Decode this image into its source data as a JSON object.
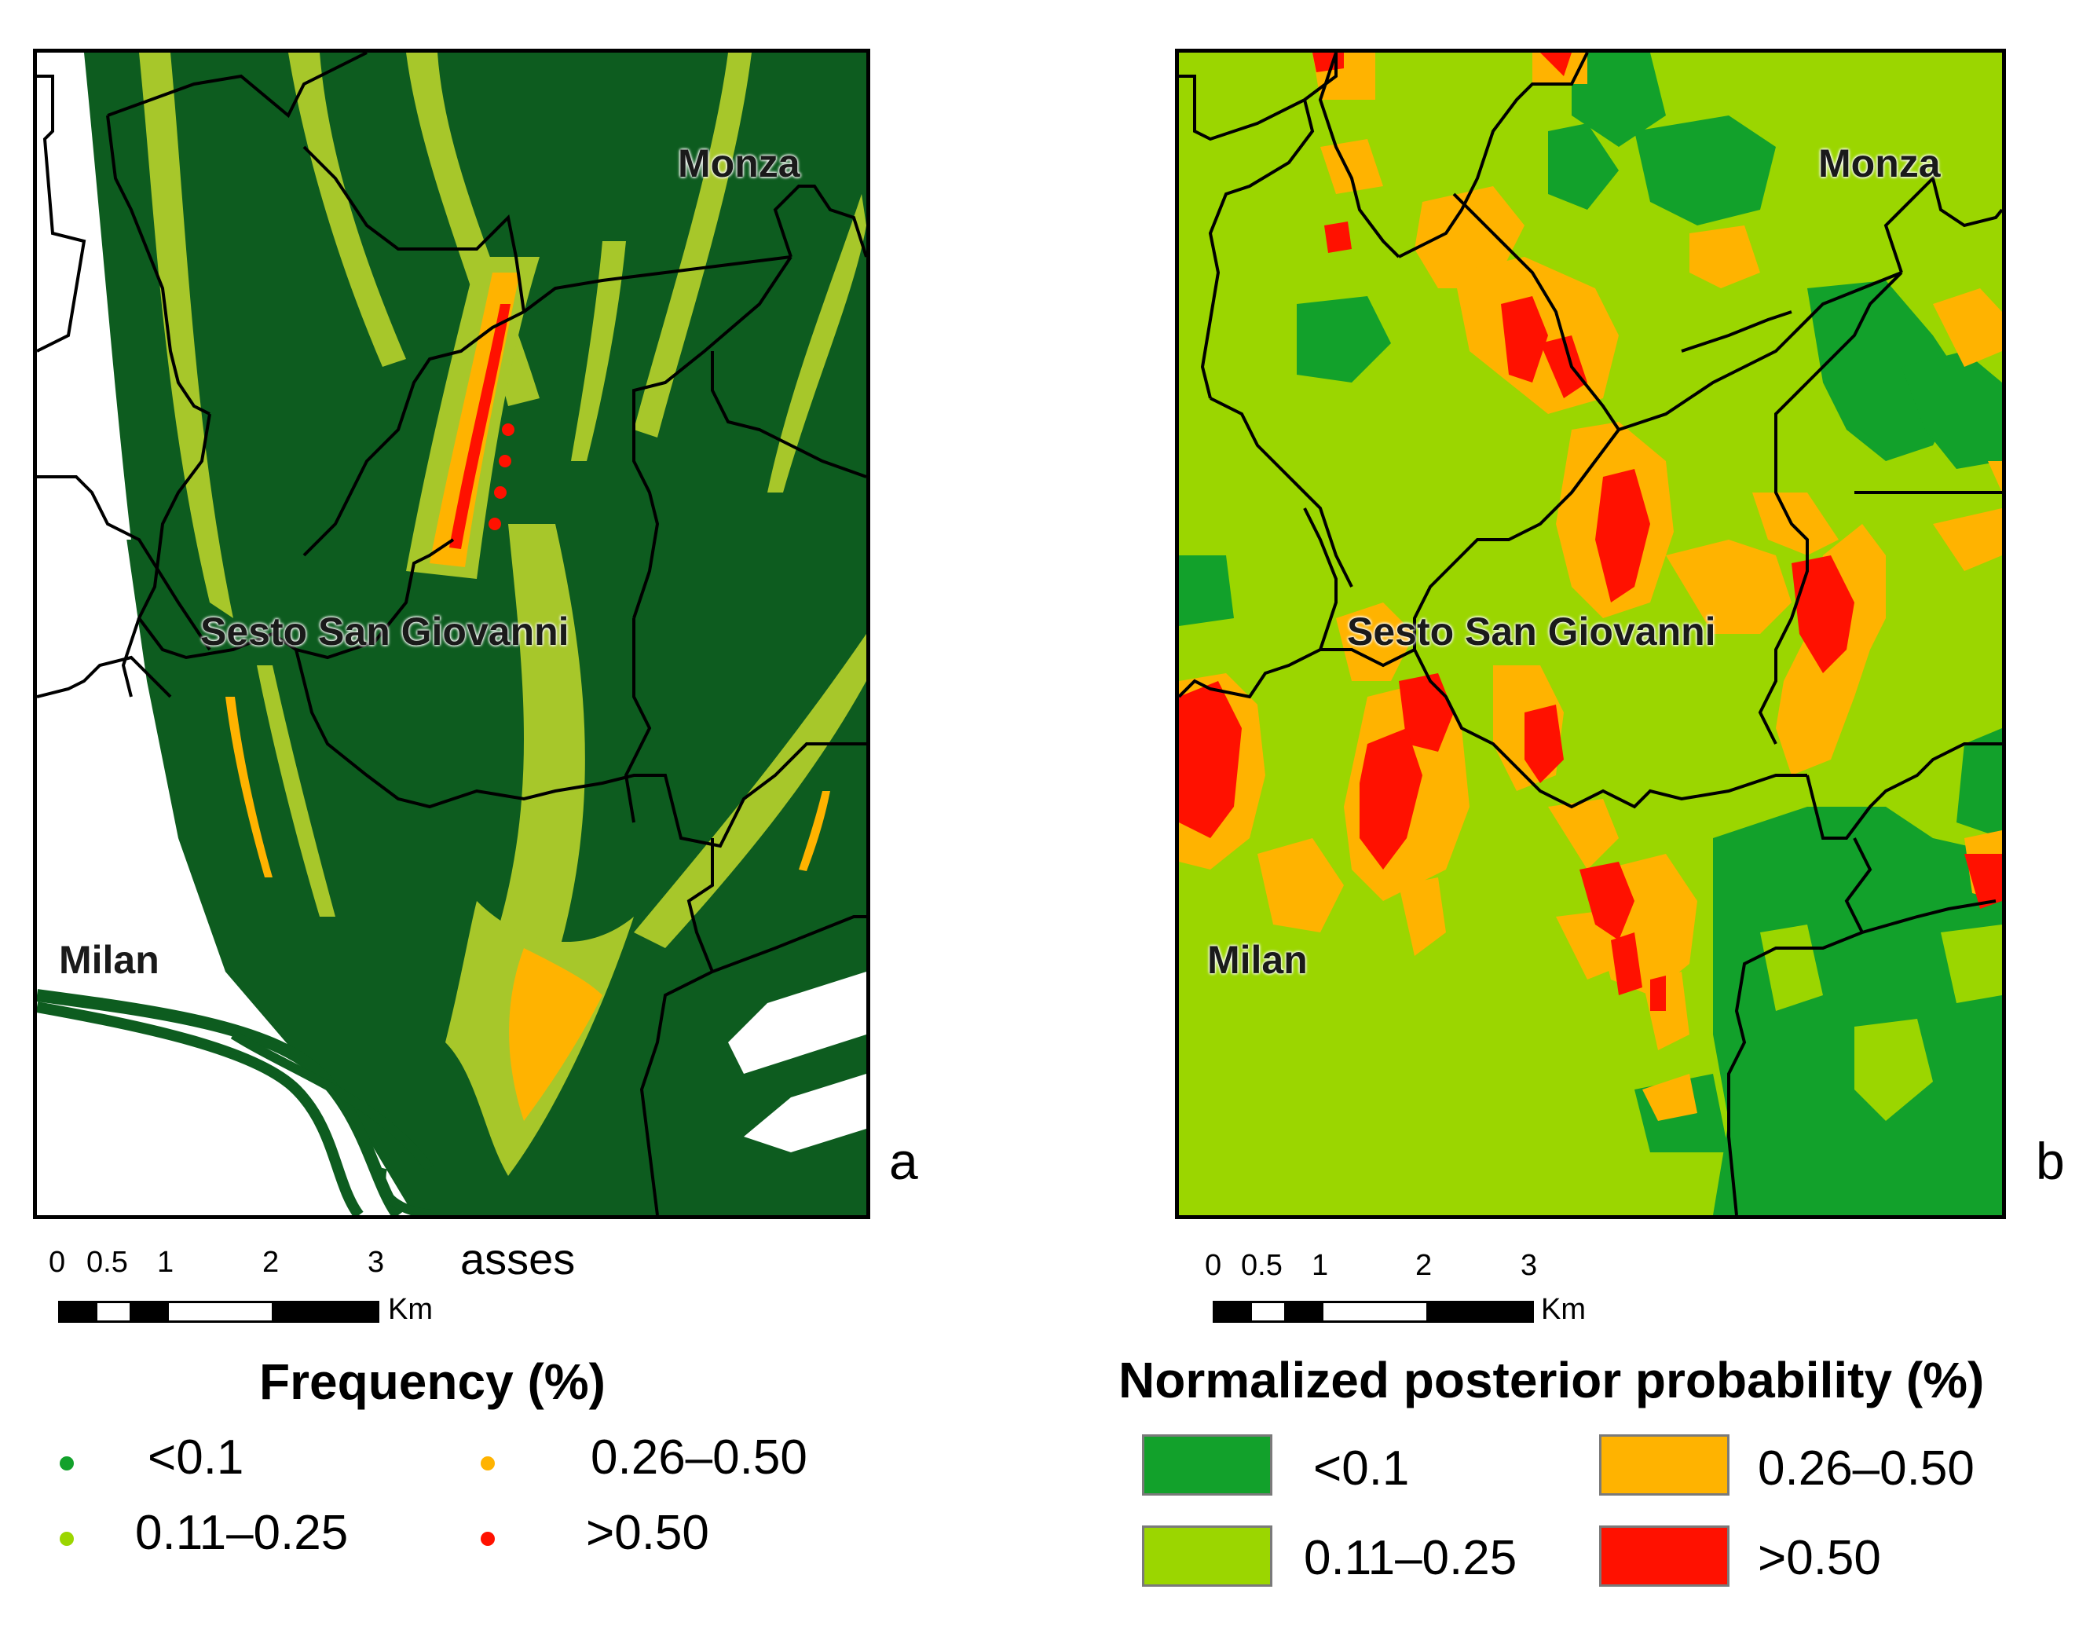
{
  "colors": {
    "dark_green": "#0d5c1f",
    "green": "#12a12b",
    "light_green": "#9bd600",
    "yellow_green": "#a7c72a",
    "orange": "#ffb300",
    "red": "#ff1100",
    "white": "#ffffff"
  },
  "panel_a": {
    "letter": "a",
    "places": {
      "monza": "Monza",
      "sesto": "Sesto San Giovanni",
      "milan": "Milan"
    },
    "scale": {
      "ticks": [
        "0",
        "0.5",
        "1",
        "2",
        "3"
      ],
      "unit": "Km",
      "stray_text": "asses"
    },
    "legend": {
      "title": "Frequency (%)",
      "items": [
        {
          "label": "<0.1",
          "color": "#12a12b"
        },
        {
          "label": "0.11–0.25",
          "color": "#9bd600"
        },
        {
          "label": "0.26–0.50",
          "color": "#ffb300"
        },
        {
          "label": ">0.50",
          "color": "#ff1100"
        }
      ]
    }
  },
  "panel_b": {
    "letter": "b",
    "places": {
      "monza": "Monza",
      "sesto": "Sesto San Giovanni",
      "milan": "Milan"
    },
    "scale": {
      "ticks": [
        "0",
        "0.5",
        "1",
        "2",
        "3"
      ],
      "unit": "Km"
    },
    "legend": {
      "title": "Normalized posterior probability (%)",
      "items": [
        {
          "label": "<0.1",
          "color": "#12a12b"
        },
        {
          "label": "0.11–0.25",
          "color": "#9bd600"
        },
        {
          "label": "0.26–0.50",
          "color": "#ffb300"
        },
        {
          "label": ">0.50",
          "color": "#ff1100"
        }
      ]
    }
  }
}
